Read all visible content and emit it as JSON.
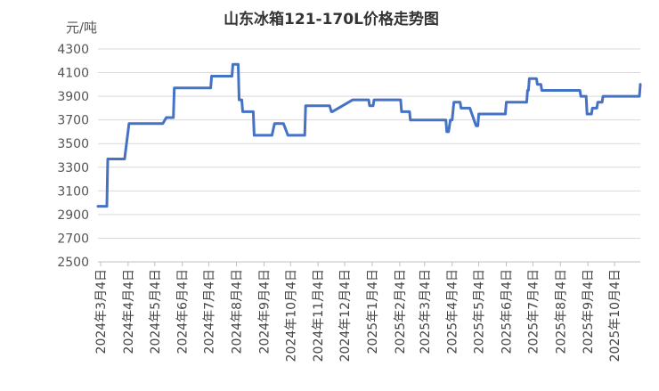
{
  "chart_data": {
    "type": "line",
    "title": "山东冰箱121-170L价格走势图",
    "unit_label": "元/吨",
    "ylim": [
      2500,
      4300
    ],
    "yticks": [
      2500,
      2700,
      2900,
      3100,
      3300,
      3500,
      3700,
      3900,
      4100,
      4300
    ],
    "xticks": [
      "2024年3月4日",
      "2024年4月4日",
      "2024年5月4日",
      "2024年6月4日",
      "2024年7月4日",
      "2024年8月4日",
      "2024年9月4日",
      "2024年10月4日",
      "2024年11月4日",
      "2024年12月4日",
      "2025年1月4日",
      "2025年2月4日",
      "2025年3月4日",
      "2025年4月4日",
      "2025年5月4日",
      "2025年6月4日",
      "2025年7月4日",
      "2025年8月4日",
      "2025年9月4日",
      "2025年10月4日"
    ],
    "grid": true,
    "color": "#4472C4",
    "series": [
      {
        "x": [
          "2024-03-01",
          "2024-03-11",
          "2024-03-12",
          "2024-03-31",
          "2024-04-05",
          "2024-04-28",
          "2024-04-29",
          "2024-05-13",
          "2024-05-17",
          "2024-05-25",
          "2024-05-26",
          "2024-06-25",
          "2024-06-26",
          "2024-07-06",
          "2024-07-07",
          "2024-07-30",
          "2024-07-31",
          "2024-08-03",
          "2024-08-04",
          "2024-08-06",
          "2024-08-07",
          "2024-08-10",
          "2024-08-11",
          "2024-08-23",
          "2024-08-24",
          "2024-09-13",
          "2024-09-16",
          "2024-09-24",
          "2024-09-25",
          "2024-09-26",
          "2024-10-01",
          "2024-10-20",
          "2024-10-21",
          "2024-11-17",
          "2024-11-19",
          "2024-11-20",
          "2024-12-13",
          "2024-12-15",
          "2024-12-16",
          "2024-12-24",
          "2024-12-25",
          "2024-12-31",
          "2025-01-01",
          "2025-01-05",
          "2025-01-06",
          "2025-02-05",
          "2025-02-06",
          "2025-02-15",
          "2025-02-16",
          "2025-03-28",
          "2025-03-29",
          "2025-03-31",
          "2025-04-02",
          "2025-04-04",
          "2025-04-06",
          "2025-04-13",
          "2025-04-14",
          "2025-04-24",
          "2025-05-01",
          "2025-05-03",
          "2025-05-04",
          "2025-06-03",
          "2025-06-04",
          "2025-06-27",
          "2025-06-28",
          "2025-06-29",
          "2025-06-30",
          "2025-07-08",
          "2025-07-09",
          "2025-07-13",
          "2025-07-14",
          "2025-08-26",
          "2025-08-27",
          "2025-09-02",
          "2025-09-03",
          "2025-09-08",
          "2025-09-09",
          "2025-09-14",
          "2025-09-15",
          "2025-09-20",
          "2025-09-21",
          "2025-11-01",
          "2025-11-02"
        ],
        "y": [
          2970,
          2970,
          3370,
          3370,
          3670,
          3670,
          3670,
          3670,
          3720,
          3720,
          3970,
          3970,
          3970,
          3970,
          4070,
          4070,
          4170,
          4170,
          4170,
          4170,
          3870,
          3870,
          3770,
          3770,
          3570,
          3570,
          3670,
          3670,
          3670,
          3670,
          3570,
          3570,
          3820,
          3820,
          3770,
          3770,
          3870,
          3870,
          3870,
          3870,
          3870,
          3870,
          3820,
          3820,
          3870,
          3870,
          3770,
          3770,
          3700,
          3700,
          3600,
          3600,
          3700,
          3700,
          3850,
          3850,
          3800,
          3800,
          3650,
          3650,
          3750,
          3750,
          3850,
          3850,
          3950,
          3950,
          4050,
          4050,
          4000,
          4000,
          3950,
          3950,
          3900,
          3900,
          3750,
          3750,
          3800,
          3800,
          3850,
          3850,
          3900,
          3900,
          4000
        ]
      }
    ]
  }
}
